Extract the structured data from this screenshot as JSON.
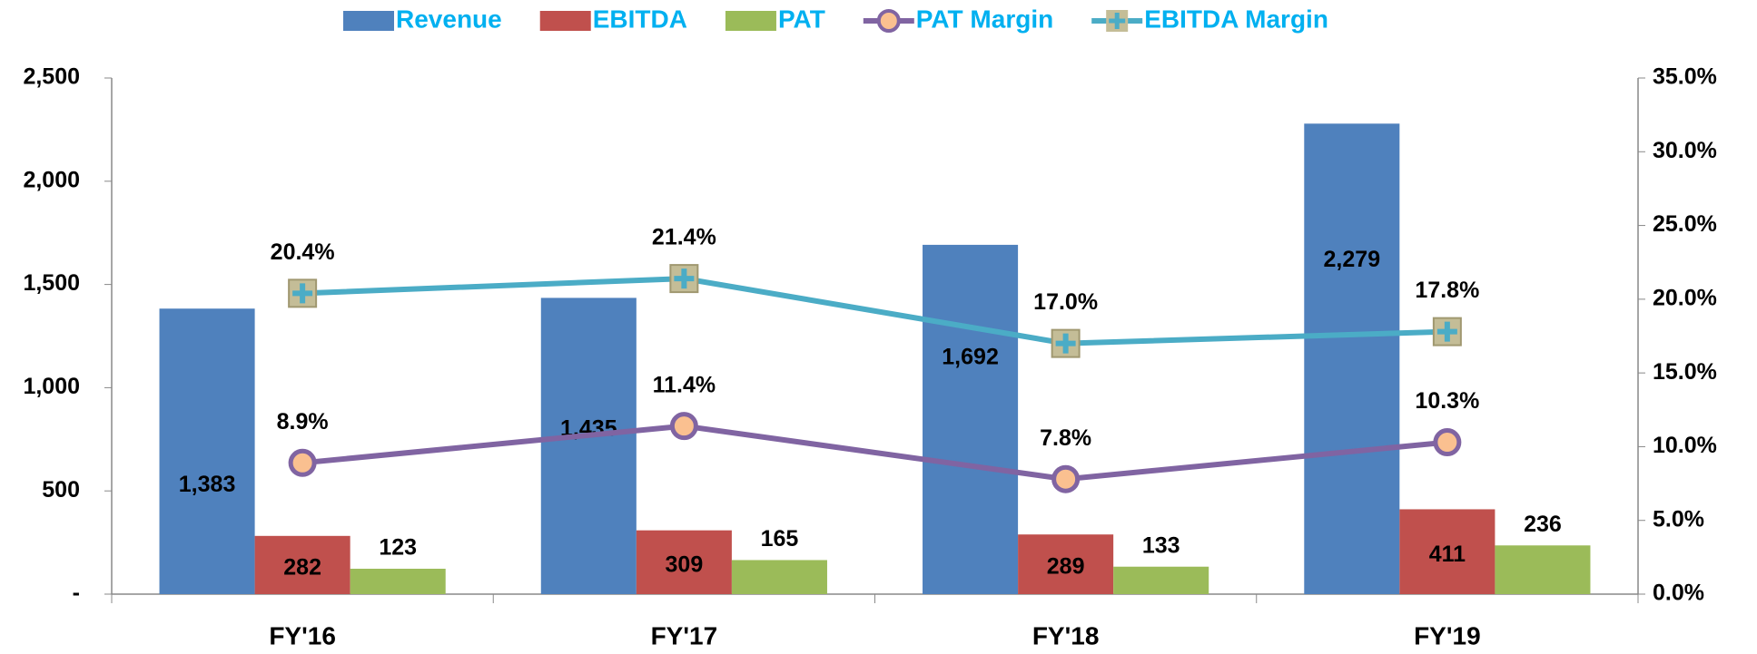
{
  "chart_data": {
    "type": "bar",
    "categories": [
      "FY'16",
      "FY'17",
      "FY'18",
      "FY'19"
    ],
    "series": [
      {
        "name": "Revenue",
        "type": "bar",
        "color": "#4f81bd",
        "values": [
          1383,
          1435,
          1692,
          2279
        ],
        "value_labels": [
          "1,383",
          "1,435",
          "1,692",
          "2,279"
        ]
      },
      {
        "name": "EBITDA",
        "type": "bar",
        "color": "#c0504d",
        "values": [
          282,
          309,
          289,
          411
        ]
      },
      {
        "name": "PAT",
        "type": "bar",
        "color": "#9bbb59",
        "values": [
          123,
          165,
          133,
          236
        ]
      },
      {
        "name": "PAT Margin",
        "type": "line",
        "axis": "y2",
        "color": "#8064a2",
        "marker_color": "#fac090",
        "values": [
          8.9,
          11.4,
          7.8,
          10.3
        ],
        "value_labels": [
          "8.9%",
          "11.4%",
          "7.8%",
          "10.3%"
        ]
      },
      {
        "name": "EBITDA Margin",
        "type": "line",
        "axis": "y2",
        "color": "#4bacc6",
        "marker_color": "#c4bd97",
        "values": [
          20.4,
          21.4,
          17.0,
          17.8
        ],
        "value_labels": [
          "20.4%",
          "21.4%",
          "17.0%",
          "17.8%"
        ]
      }
    ],
    "ylim": [
      0,
      2500
    ],
    "yticks": [
      {
        "value": 0,
        "label": "-"
      },
      500,
      {
        "value": 1000,
        "label": "1,000"
      },
      {
        "value": 1500,
        "label": "1,500"
      },
      {
        "value": 2000,
        "label": "2,000"
      },
      {
        "value": 2500,
        "label": "2,500"
      }
    ],
    "y2lim": [
      0,
      35
    ],
    "y2ticks": [
      {
        "value": 0,
        "label": "0.0%"
      },
      {
        "value": 5,
        "label": "5.0%"
      },
      {
        "value": 10,
        "label": "10.0%"
      },
      {
        "value": 15,
        "label": "15.0%"
      },
      {
        "value": 20,
        "label": "20.0%"
      },
      {
        "value": 25,
        "label": "25.0%"
      },
      {
        "value": 30,
        "label": "30.0%"
      },
      {
        "value": 35,
        "label": "35.0%"
      }
    ],
    "legend": "top"
  }
}
